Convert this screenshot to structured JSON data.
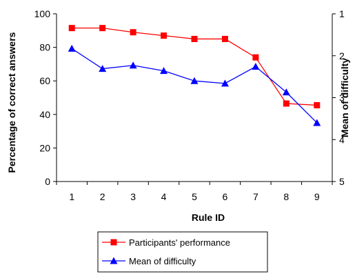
{
  "chart_data": {
    "type": "line",
    "title": "",
    "xlabel": "Rule ID",
    "ylabel": "Percentage of correct answers",
    "y2label": "Mean of difficulty",
    "categories": [
      "1",
      "2",
      "3",
      "4",
      "5",
      "6",
      "7",
      "8",
      "9"
    ],
    "ylim": [
      0,
      100
    ],
    "yticks": [
      "0",
      "20",
      "40",
      "60",
      "80",
      "100"
    ],
    "y2lim": [
      1,
      5
    ],
    "y2_inverted": true,
    "y2ticks": [
      "1",
      "2",
      "3",
      "4",
      "5"
    ],
    "grid": false,
    "legend_position": "bottom",
    "series": [
      {
        "name": "Participants' performance",
        "axis": "left",
        "color": "#ff0000",
        "marker": "square",
        "values": [
          91.5,
          91.5,
          89,
          87,
          85,
          85,
          74,
          46.5,
          45.5
        ]
      },
      {
        "name": "Mean of difficulty",
        "axis": "right",
        "color": "#0000ff",
        "marker": "triangle",
        "values": [
          1.83,
          2.31,
          2.23,
          2.36,
          2.6,
          2.66,
          2.26,
          2.87,
          3.6
        ]
      }
    ]
  }
}
